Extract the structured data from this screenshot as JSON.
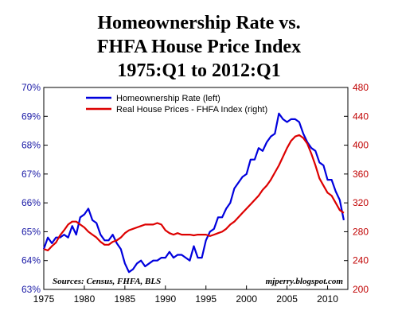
{
  "title_lines": [
    "Homeownership Rate vs.",
    "FHFA House Price Index",
    "1975:Q1 to 2012:Q1"
  ],
  "chart_data": {
    "type": "line",
    "title": "Homeownership Rate vs. FHFA House Price Index 1975:Q1 to 2012:Q1",
    "legend_position": "top-left",
    "grid": false,
    "x_axis": {
      "range": [
        1975,
        2012.5
      ],
      "ticks": [
        1975,
        1980,
        1985,
        1990,
        1995,
        2000,
        2005,
        2010
      ],
      "tick_labels": [
        "1975",
        "1980",
        "1985",
        "1990",
        "1995",
        "2000",
        "2005",
        "2010"
      ]
    },
    "y_left": {
      "range": [
        63,
        70
      ],
      "ticks": [
        63,
        64,
        65,
        66,
        67,
        68,
        69,
        70
      ],
      "tick_labels": [
        "63%",
        "64%",
        "65%",
        "66%",
        "67%",
        "68%",
        "69%",
        "70%"
      ],
      "color": "#1a1aa6"
    },
    "y_right": {
      "range": [
        200,
        480
      ],
      "ticks": [
        200,
        240,
        280,
        320,
        360,
        400,
        440,
        480
      ],
      "tick_labels": [
        "200",
        "240",
        "280",
        "320",
        "360",
        "400",
        "440",
        "480"
      ],
      "color": "#c00000"
    },
    "series": [
      {
        "name": "Homeownership Rate (left)",
        "axis": "left",
        "color": "#0000dd",
        "x": [
          1975.0,
          1975.5,
          1976.0,
          1976.5,
          1977.0,
          1977.5,
          1978.0,
          1978.5,
          1979.0,
          1979.5,
          1980.0,
          1980.5,
          1981.0,
          1981.5,
          1982.0,
          1982.5,
          1983.0,
          1983.5,
          1984.0,
          1984.5,
          1985.0,
          1985.5,
          1986.0,
          1986.5,
          1987.0,
          1987.5,
          1988.0,
          1988.5,
          1989.0,
          1989.5,
          1990.0,
          1990.5,
          1991.0,
          1991.5,
          1992.0,
          1992.5,
          1993.0,
          1993.5,
          1994.0,
          1994.5,
          1995.0,
          1995.5,
          1996.0,
          1996.5,
          1997.0,
          1997.5,
          1998.0,
          1998.5,
          1999.0,
          1999.5,
          2000.0,
          2000.5,
          2001.0,
          2001.5,
          2002.0,
          2002.5,
          2003.0,
          2003.5,
          2004.0,
          2004.5,
          2005.0,
          2005.5,
          2006.0,
          2006.5,
          2007.0,
          2007.5,
          2008.0,
          2008.5,
          2009.0,
          2009.5,
          2010.0,
          2010.5,
          2011.0,
          2011.5,
          2012.0
        ],
        "values": [
          64.4,
          64.8,
          64.6,
          64.8,
          64.8,
          64.9,
          64.8,
          65.2,
          64.9,
          65.5,
          65.6,
          65.8,
          65.4,
          65.3,
          64.9,
          64.7,
          64.7,
          64.9,
          64.6,
          64.4,
          63.9,
          63.6,
          63.7,
          63.9,
          64.0,
          63.8,
          63.9,
          64.0,
          64.0,
          64.1,
          64.1,
          64.3,
          64.1,
          64.2,
          64.2,
          64.1,
          64.0,
          64.5,
          64.1,
          64.1,
          64.7,
          65.0,
          65.1,
          65.5,
          65.5,
          65.8,
          66.0,
          66.5,
          66.7,
          66.9,
          67.0,
          67.5,
          67.5,
          67.9,
          67.8,
          68.1,
          68.3,
          68.4,
          69.1,
          68.9,
          68.8,
          68.9,
          68.9,
          68.8,
          68.4,
          68.1,
          67.9,
          67.8,
          67.4,
          67.3,
          66.8,
          66.8,
          66.4,
          66.1,
          65.4
        ]
      },
      {
        "name": "Real House Prices - FHFA Index (right)",
        "axis": "right",
        "color": "#dd0000",
        "x": [
          1975.0,
          1975.5,
          1976.0,
          1976.5,
          1977.0,
          1977.5,
          1978.0,
          1978.5,
          1979.0,
          1979.5,
          1980.0,
          1980.5,
          1981.0,
          1981.5,
          1982.0,
          1982.5,
          1983.0,
          1983.5,
          1984.0,
          1984.5,
          1985.0,
          1985.5,
          1986.0,
          1986.5,
          1987.0,
          1987.5,
          1988.0,
          1988.5,
          1989.0,
          1989.5,
          1990.0,
          1990.5,
          1991.0,
          1991.5,
          1992.0,
          1992.5,
          1993.0,
          1993.5,
          1994.0,
          1994.5,
          1995.0,
          1995.5,
          1996.0,
          1996.5,
          1997.0,
          1997.5,
          1998.0,
          1998.5,
          1999.0,
          1999.5,
          2000.0,
          2000.5,
          2001.0,
          2001.5,
          2002.0,
          2002.5,
          2003.0,
          2003.5,
          2004.0,
          2004.5,
          2005.0,
          2005.5,
          2006.0,
          2006.5,
          2007.0,
          2007.5,
          2008.0,
          2008.5,
          2009.0,
          2009.5,
          2010.0,
          2010.5,
          2011.0,
          2011.5,
          2012.0
        ],
        "values": [
          256,
          254,
          260,
          265,
          275,
          282,
          290,
          294,
          294,
          290,
          286,
          280,
          276,
          272,
          266,
          262,
          262,
          266,
          268,
          272,
          278,
          282,
          284,
          286,
          288,
          290,
          290,
          290,
          292,
          290,
          282,
          278,
          276,
          278,
          276,
          276,
          276,
          275,
          276,
          276,
          276,
          274,
          276,
          278,
          280,
          284,
          290,
          294,
          300,
          306,
          312,
          318,
          324,
          330,
          338,
          344,
          352,
          362,
          372,
          384,
          396,
          406,
          412,
          414,
          410,
          402,
          388,
          372,
          354,
          344,
          334,
          330,
          320,
          310,
          306
        ]
      }
    ],
    "annotations": [
      {
        "text": "Sources: Census, FHFA, BLS",
        "position": "bottom-left"
      },
      {
        "text": "mjperry.blogspot.com",
        "position": "bottom-right"
      }
    ]
  }
}
